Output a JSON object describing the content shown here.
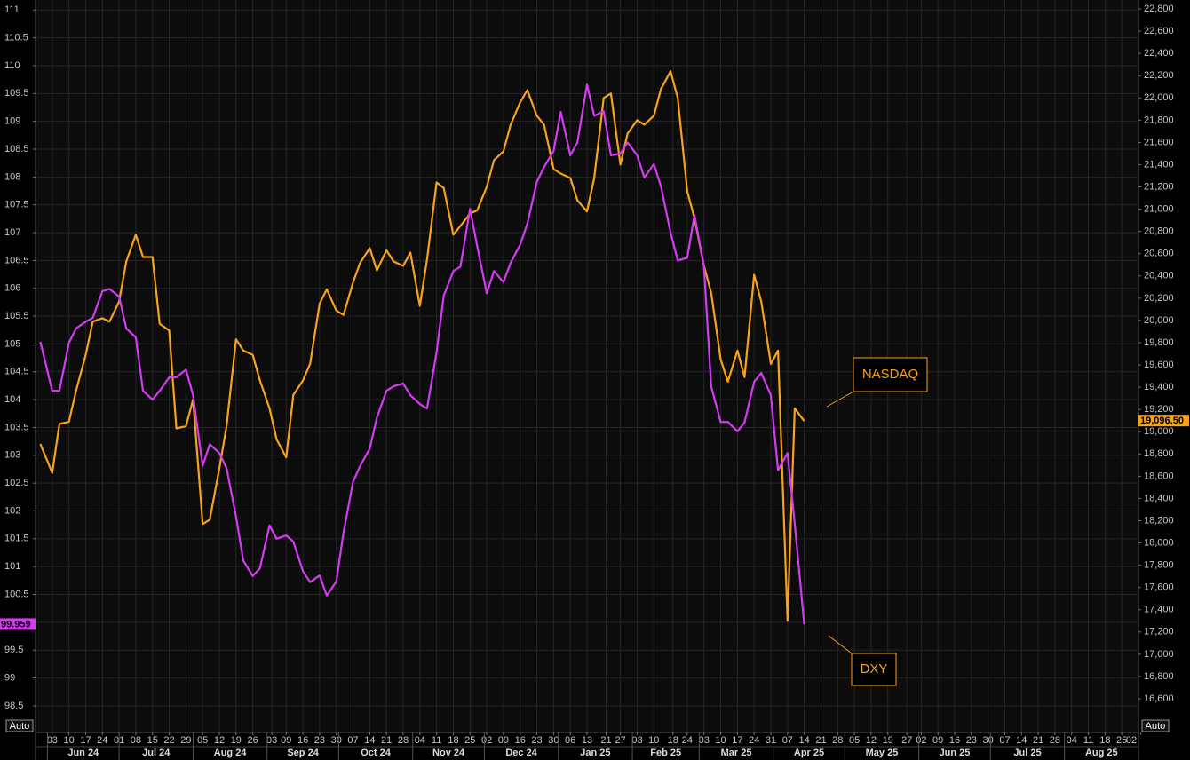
{
  "chart_data": {
    "type": "line",
    "x": [
      "2024-05-29",
      "2024-06-03",
      "2024-06-06",
      "2024-06-10",
      "2024-06-13",
      "2024-06-17",
      "2024-06-20",
      "2024-06-24",
      "2024-06-27",
      "2024-07-01",
      "2024-07-04",
      "2024-07-08",
      "2024-07-11",
      "2024-07-15",
      "2024-07-18",
      "2024-07-22",
      "2024-07-25",
      "2024-07-29",
      "2024-08-01",
      "2024-08-05",
      "2024-08-08",
      "2024-08-12",
      "2024-08-15",
      "2024-08-19",
      "2024-08-22",
      "2024-08-26",
      "2024-08-29",
      "2024-09-02",
      "2024-09-05",
      "2024-09-09",
      "2024-09-12",
      "2024-09-16",
      "2024-09-19",
      "2024-09-23",
      "2024-09-26",
      "2024-09-30",
      "2024-10-03",
      "2024-10-07",
      "2024-10-10",
      "2024-10-14",
      "2024-10-17",
      "2024-10-21",
      "2024-10-24",
      "2024-10-28",
      "2024-10-31",
      "2024-11-04",
      "2024-11-07",
      "2024-11-11",
      "2024-11-14",
      "2024-11-18",
      "2024-11-21",
      "2024-11-25",
      "2024-11-28",
      "2024-12-02",
      "2024-12-05",
      "2024-12-09",
      "2024-12-12",
      "2024-12-16",
      "2024-12-19",
      "2024-12-23",
      "2024-12-26",
      "2024-12-30",
      "2025-01-02",
      "2025-01-06",
      "2025-01-09",
      "2025-01-13",
      "2025-01-16",
      "2025-01-20",
      "2025-01-23",
      "2025-01-27",
      "2025-01-30",
      "2025-02-03",
      "2025-02-06",
      "2025-02-10",
      "2025-02-13",
      "2025-02-17",
      "2025-02-20",
      "2025-02-24",
      "2025-02-27",
      "2025-03-03",
      "2025-03-06",
      "2025-03-10",
      "2025-03-13",
      "2025-03-17",
      "2025-03-20",
      "2025-03-24",
      "2025-03-27",
      "2025-03-31",
      "2025-04-03",
      "2025-04-07",
      "2025-04-10",
      "2025-04-14"
    ],
    "series": [
      {
        "name": "NASDAQ",
        "color": "#f7a21b",
        "axis": "y2",
        "last_label": "19,096.50",
        "values": [
          18890,
          18630,
          19070,
          19090,
          19370,
          19690,
          19990,
          20020,
          19990,
          20170,
          20530,
          20770,
          20570,
          20570,
          19970,
          19910,
          19030,
          19050,
          19290,
          18170,
          18210,
          18670,
          19050,
          19830,
          19730,
          19690,
          19460,
          19210,
          18930,
          18770,
          19330,
          19460,
          19610,
          20150,
          20280,
          20090,
          20050,
          20340,
          20520,
          20650,
          20450,
          20630,
          20530,
          20490,
          20610,
          20130,
          20550,
          21240,
          21190,
          20770,
          20850,
          20960,
          20990,
          21200,
          21440,
          21520,
          21760,
          21960,
          22070,
          21840,
          21760,
          21360,
          21320,
          21280,
          21080,
          20980,
          21280,
          22000,
          22040,
          21400,
          21680,
          21800,
          21760,
          21840,
          22080,
          22240,
          22000,
          21160,
          20920,
          20490,
          20250,
          19650,
          19450,
          19730,
          19490,
          20410,
          20170,
          19610,
          19730,
          17300,
          19210,
          19096.5
        ]
      },
      {
        "name": "DXY",
        "color": "#d43cf2",
        "axis": "y",
        "last_label": "99.959",
        "values": [
          105.04,
          104.16,
          104.16,
          105.02,
          105.28,
          105.4,
          105.47,
          105.95,
          105.99,
          105.85,
          105.28,
          105.12,
          104.16,
          104.0,
          104.16,
          104.4,
          104.4,
          104.54,
          104.08,
          102.81,
          103.2,
          103.04,
          102.77,
          101.9,
          101.11,
          100.83,
          100.97,
          101.74,
          101.5,
          101.56,
          101.45,
          100.92,
          100.72,
          100.84,
          100.48,
          100.73,
          101.61,
          102.52,
          102.81,
          103.12,
          103.68,
          104.16,
          104.24,
          104.29,
          104.08,
          103.92,
          103.84,
          104.85,
          105.87,
          106.31,
          106.39,
          107.43,
          106.76,
          105.91,
          106.31,
          106.11,
          106.46,
          106.78,
          107.16,
          107.91,
          108.18,
          108.47,
          109.17,
          108.39,
          108.62,
          109.66,
          109.1,
          109.18,
          108.39,
          108.42,
          108.62,
          108.39,
          107.99,
          108.23,
          107.83,
          107.0,
          106.5,
          106.55,
          107.32,
          106.39,
          104.24,
          103.6,
          103.6,
          103.43,
          103.59,
          104.32,
          104.48,
          104.08,
          102.73,
          103.04,
          101.77,
          99.959
        ]
      }
    ],
    "xlim": [
      "2024-05-27",
      "2025-09-01"
    ],
    "xticks": [
      {
        "value": "2024-06-03",
        "label": "03"
      },
      {
        "value": "2024-06-10",
        "label": "10"
      },
      {
        "value": "2024-06-17",
        "label": "17"
      },
      {
        "value": "2024-06-24",
        "label": "24"
      },
      {
        "value": "2024-07-01",
        "label": "01"
      },
      {
        "value": "2024-07-08",
        "label": "08"
      },
      {
        "value": "2024-07-15",
        "label": "15"
      },
      {
        "value": "2024-07-22",
        "label": "22"
      },
      {
        "value": "2024-07-29",
        "label": "29"
      },
      {
        "value": "2024-08-05",
        "label": "05"
      },
      {
        "value": "2024-08-12",
        "label": "12"
      },
      {
        "value": "2024-08-19",
        "label": "19"
      },
      {
        "value": "2024-08-26",
        "label": "26"
      },
      {
        "value": "2024-09-03",
        "label": "03"
      },
      {
        "value": "2024-09-09",
        "label": "09"
      },
      {
        "value": "2024-09-16",
        "label": "16"
      },
      {
        "value": "2024-09-23",
        "label": "23"
      },
      {
        "value": "2024-09-30",
        "label": "30"
      },
      {
        "value": "2024-10-07",
        "label": "07"
      },
      {
        "value": "2024-10-14",
        "label": "14"
      },
      {
        "value": "2024-10-21",
        "label": "21"
      },
      {
        "value": "2024-10-28",
        "label": "28"
      },
      {
        "value": "2024-11-04",
        "label": "04"
      },
      {
        "value": "2024-11-11",
        "label": "11"
      },
      {
        "value": "2024-11-18",
        "label": "18"
      },
      {
        "value": "2024-11-25",
        "label": "25"
      },
      {
        "value": "2024-12-02",
        "label": "02"
      },
      {
        "value": "2024-12-09",
        "label": "09"
      },
      {
        "value": "2024-12-16",
        "label": "16"
      },
      {
        "value": "2024-12-23",
        "label": "23"
      },
      {
        "value": "2024-12-30",
        "label": "30"
      },
      {
        "value": "2025-01-06",
        "label": "06"
      },
      {
        "value": "2025-01-13",
        "label": "13"
      },
      {
        "value": "2025-01-21",
        "label": "21"
      },
      {
        "value": "2025-01-27",
        "label": "27"
      },
      {
        "value": "2025-02-03",
        "label": "03"
      },
      {
        "value": "2025-02-10",
        "label": "10"
      },
      {
        "value": "2025-02-18",
        "label": "18"
      },
      {
        "value": "2025-02-24",
        "label": "24"
      },
      {
        "value": "2025-03-03",
        "label": "03"
      },
      {
        "value": "2025-03-10",
        "label": "10"
      },
      {
        "value": "2025-03-17",
        "label": "17"
      },
      {
        "value": "2025-03-24",
        "label": "24"
      },
      {
        "value": "2025-03-31",
        "label": "31"
      },
      {
        "value": "2025-04-07",
        "label": "07"
      },
      {
        "value": "2025-04-14",
        "label": "14"
      },
      {
        "value": "2025-04-21",
        "label": "21"
      },
      {
        "value": "2025-04-28",
        "label": "28"
      },
      {
        "value": "2025-05-05",
        "label": "05"
      },
      {
        "value": "2025-05-12",
        "label": "12"
      },
      {
        "value": "2025-05-19",
        "label": "19"
      },
      {
        "value": "2025-05-27",
        "label": "27"
      },
      {
        "value": "2025-06-02",
        "label": "02"
      },
      {
        "value": "2025-06-09",
        "label": "09"
      },
      {
        "value": "2025-06-16",
        "label": "16"
      },
      {
        "value": "2025-06-23",
        "label": "23"
      },
      {
        "value": "2025-06-30",
        "label": "30"
      },
      {
        "value": "2025-07-07",
        "label": "07"
      },
      {
        "value": "2025-07-14",
        "label": "14"
      },
      {
        "value": "2025-07-21",
        "label": "21"
      },
      {
        "value": "2025-07-28",
        "label": "28"
      },
      {
        "value": "2025-08-04",
        "label": "04"
      },
      {
        "value": "2025-08-11",
        "label": "11"
      },
      {
        "value": "2025-08-18",
        "label": "18"
      },
      {
        "value": "2025-08-25",
        "label": "25"
      },
      {
        "value": "2025-09-02",
        "label": "02"
      }
    ],
    "months": [
      {
        "value": "2024-06",
        "label": "Jun 24"
      },
      {
        "value": "2024-07",
        "label": "Jul 24"
      },
      {
        "value": "2024-08",
        "label": "Aug 24"
      },
      {
        "value": "2024-09",
        "label": "Sep 24"
      },
      {
        "value": "2024-10",
        "label": "Oct 24"
      },
      {
        "value": "2024-11",
        "label": "Nov 24"
      },
      {
        "value": "2024-12",
        "label": "Dec 24"
      },
      {
        "value": "2025-01",
        "label": "Jan 25"
      },
      {
        "value": "2025-02",
        "label": "Feb 25"
      },
      {
        "value": "2025-03",
        "label": "Mar 25"
      },
      {
        "value": "2025-04",
        "label": "Apr 25"
      },
      {
        "value": "2025-05",
        "label": "May 25"
      },
      {
        "value": "2025-06",
        "label": "Jun 25"
      },
      {
        "value": "2025-07",
        "label": "Jul 25"
      },
      {
        "value": "2025-08",
        "label": "Aug 25"
      }
    ],
    "ylim": [
      98.02,
      111.18
    ],
    "yticks": [
      98.5,
      99,
      99.5,
      100,
      100.5,
      101,
      101.5,
      102,
      102.5,
      103,
      103.5,
      104,
      104.5,
      105,
      105.5,
      106,
      106.5,
      107,
      107.5,
      108,
      108.5,
      109,
      109.5,
      110,
      110.5,
      111
    ],
    "y2lim": [
      16297,
      22880
    ],
    "y2ticks": [
      {
        "value": 16600,
        "label": "16,600"
      },
      {
        "value": 16800,
        "label": "16,800"
      },
      {
        "value": 17000,
        "label": "17,000"
      },
      {
        "value": 17200,
        "label": "17,200"
      },
      {
        "value": 17400,
        "label": "17,400"
      },
      {
        "value": 17600,
        "label": "17,600"
      },
      {
        "value": 17800,
        "label": "17,800"
      },
      {
        "value": 18000,
        "label": "18,000"
      },
      {
        "value": 18200,
        "label": "18,200"
      },
      {
        "value": 18400,
        "label": "18,400"
      },
      {
        "value": 18600,
        "label": "18,600"
      },
      {
        "value": 18800,
        "label": "18,800"
      },
      {
        "value": 19000,
        "label": "19,000"
      },
      {
        "value": 19200,
        "label": "19,200"
      },
      {
        "value": 19400,
        "label": "19,400"
      },
      {
        "value": 19600,
        "label": "19,600"
      },
      {
        "value": 19800,
        "label": "19,800"
      },
      {
        "value": 20000,
        "label": "20,000"
      },
      {
        "value": 20200,
        "label": "20,200"
      },
      {
        "value": 20400,
        "label": "20,400"
      },
      {
        "value": 20600,
        "label": "20,600"
      },
      {
        "value": 20800,
        "label": "20,800"
      },
      {
        "value": 21000,
        "label": "21,000"
      },
      {
        "value": 21200,
        "label": "21,200"
      },
      {
        "value": 21400,
        "label": "21,400"
      },
      {
        "value": 21600,
        "label": "21,600"
      },
      {
        "value": 21800,
        "label": "21,800"
      },
      {
        "value": 22000,
        "label": "22,000"
      },
      {
        "value": 22200,
        "label": "22,200"
      },
      {
        "value": 22400,
        "label": "22,400"
      },
      {
        "value": 22600,
        "label": "22,600"
      },
      {
        "value": 22800,
        "label": "22,800"
      }
    ],
    "grid": true
  },
  "controls": [
    "Auto",
    "Auto"
  ]
}
